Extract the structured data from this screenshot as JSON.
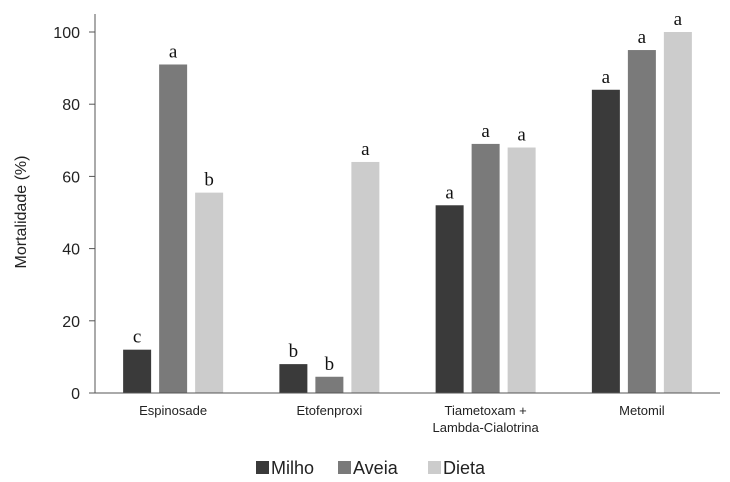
{
  "chart_data": {
    "type": "bar",
    "title": "",
    "xlabel": "",
    "ylabel": "Mortalidade (%)",
    "ylim": [
      0,
      100
    ],
    "yticks": [
      0,
      20,
      40,
      60,
      80,
      100
    ],
    "grid": false,
    "legend_position": "bottom",
    "categories": [
      [
        "Espinosade"
      ],
      [
        "Etofenproxi"
      ],
      [
        "Tiametoxam +",
        "Lambda-Cialotrina"
      ],
      [
        "Metomil"
      ]
    ],
    "series": [
      {
        "name": "Milho",
        "color": "#3a3a3a",
        "values": [
          12,
          8,
          52,
          84
        ],
        "labels": [
          "c",
          "b",
          "a",
          "a"
        ]
      },
      {
        "name": "Aveia",
        "color": "#7a7a7a",
        "values": [
          91,
          4.5,
          69,
          95
        ],
        "labels": [
          "a",
          "b",
          "a",
          "a"
        ]
      },
      {
        "name": "Dieta",
        "color": "#cccccc",
        "values": [
          55.5,
          64,
          68,
          100
        ],
        "labels": [
          "b",
          "a",
          "a",
          "a"
        ]
      }
    ]
  }
}
